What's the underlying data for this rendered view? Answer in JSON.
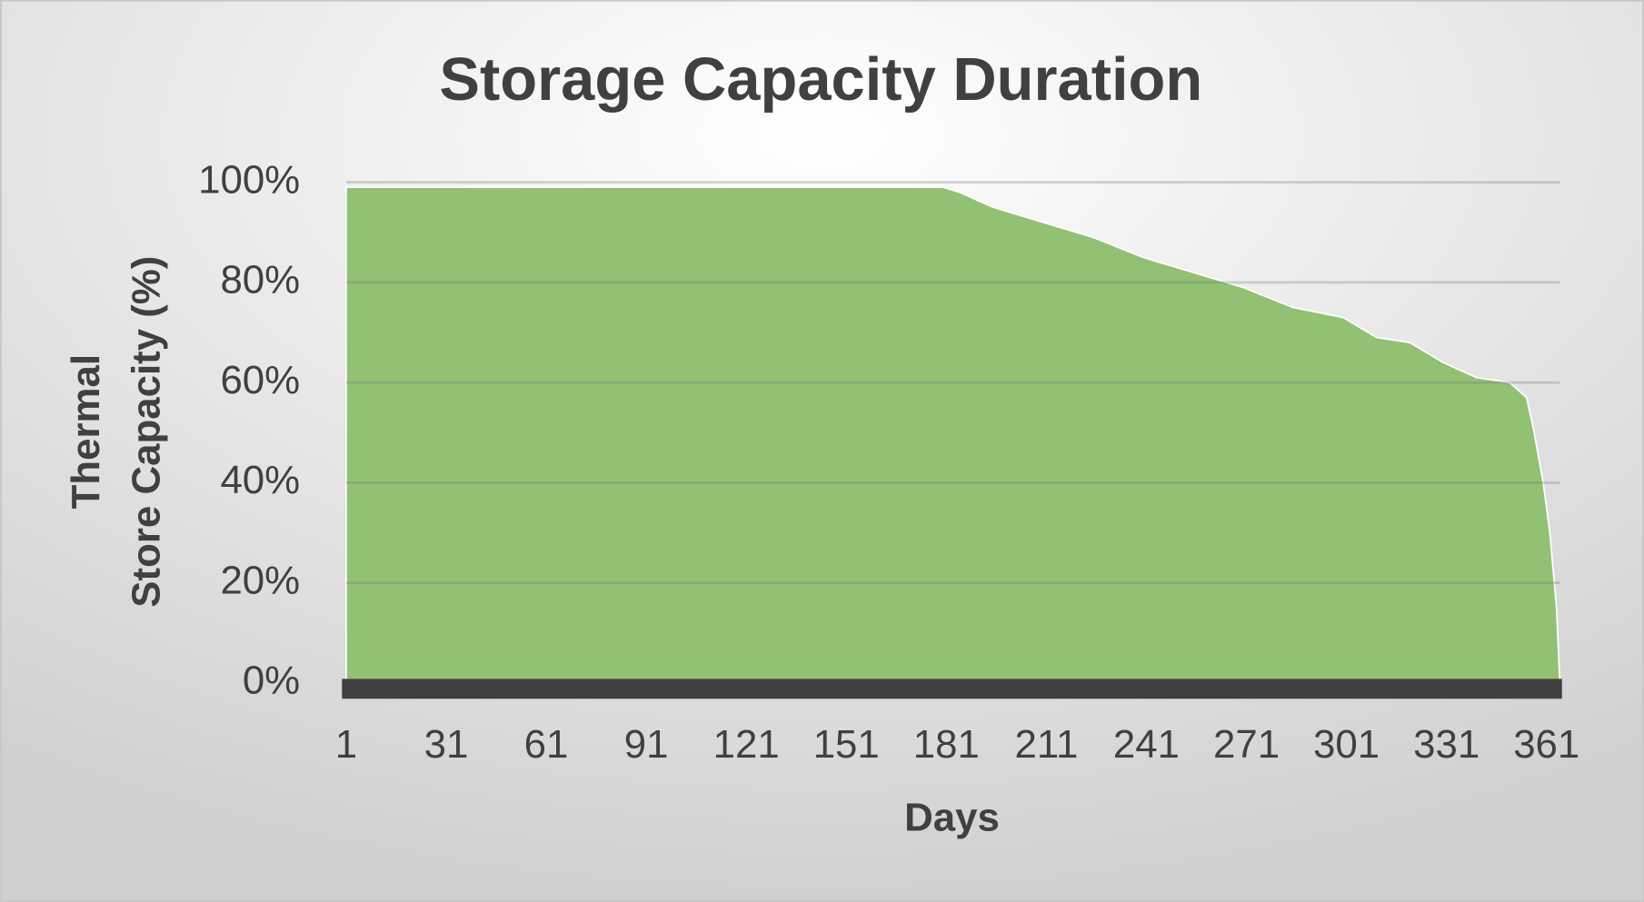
{
  "chart_data": {
    "type": "area",
    "title": "Storage Capacity Duration",
    "x_label": "Days",
    "y_label": [
      "Thermal",
      "Store Capacity (%)"
    ],
    "color": "#92c173",
    "grid": true,
    "xlim": [
      1,
      365
    ],
    "xticks": [
      1,
      31,
      61,
      91,
      121,
      151,
      181,
      211,
      241,
      271,
      301,
      331,
      361
    ],
    "ylim": [
      0,
      100
    ],
    "yticks": [
      {
        "value": 0,
        "label": "0%"
      },
      {
        "value": 20,
        "label": "20%"
      },
      {
        "value": 40,
        "label": "40%"
      },
      {
        "value": 60,
        "label": "60%"
      },
      {
        "value": 80,
        "label": "80%"
      },
      {
        "value": 100,
        "label": "100%"
      }
    ],
    "x": [
      1,
      180,
      185,
      195,
      210,
      225,
      240,
      255,
      270,
      285,
      300,
      310,
      320,
      330,
      340,
      350,
      355,
      357,
      360,
      362,
      364,
      365
    ],
    "values": [
      99,
      99,
      98,
      95,
      92,
      89,
      85,
      82,
      79,
      75,
      73,
      69,
      68,
      64,
      61,
      60,
      57,
      51,
      40,
      30,
      15,
      0
    ]
  }
}
